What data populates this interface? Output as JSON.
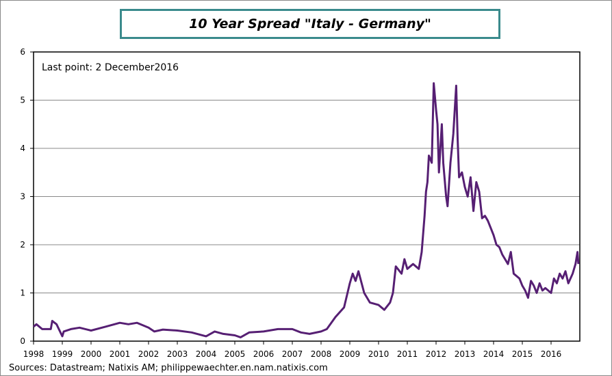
{
  "chart_data": {
    "type": "line",
    "title": "10 Year Spread \"Italy - Germany\"",
    "annotation": "Last point: 2 December2016",
    "source": "Sources: Datastream;  Natixis AM; philippewaechter.en.nam.natixis.com",
    "xlabel": "",
    "ylabel": "",
    "xlim": [
      1998,
      2017
    ],
    "ylim": [
      0,
      6
    ],
    "grid": true,
    "line_color": "#561f73",
    "y_ticks": [
      "0",
      "1",
      "2",
      "3",
      "4",
      "5",
      "6"
    ],
    "x_ticks": [
      "1998",
      "1999",
      "2000",
      "2001",
      "2002",
      "2003",
      "2004",
      "2005",
      "2006",
      "2007",
      "2008",
      "2009",
      "2010",
      "2011",
      "2012",
      "2013",
      "2014",
      "2015",
      "2016"
    ],
    "series": [
      {
        "x": [
          1998.0,
          1998.1,
          1998.3,
          1998.6,
          1998.65,
          1998.8,
          1999.0,
          1999.05,
          1999.3,
          1999.6,
          2000.0,
          2000.5,
          2001.0,
          2001.3,
          2001.6,
          2002.0,
          2002.2,
          2002.5,
          2003.0,
          2003.5,
          2004.0,
          2004.3,
          2004.6,
          2005.0,
          2005.2,
          2005.5,
          2006.0,
          2006.5,
          2007.0,
          2007.3,
          2007.6,
          2008.0,
          2008.2,
          2008.5,
          2008.8,
          2009.0,
          2009.1,
          2009.2,
          2009.3,
          2009.5,
          2009.7,
          2010.0,
          2010.2,
          2010.4,
          2010.5,
          2010.6,
          2010.8,
          2010.9,
          2011.0,
          2011.2,
          2011.4,
          2011.5,
          2011.6,
          2011.65,
          2011.7,
          2011.75,
          2011.85,
          2011.92,
          2012.0,
          2012.05,
          2012.1,
          2012.2,
          2012.25,
          2012.35,
          2012.4,
          2012.5,
          2012.6,
          2012.7,
          2012.75,
          2012.8,
          2012.9,
          2013.0,
          2013.1,
          2013.2,
          2013.3,
          2013.4,
          2013.5,
          2013.6,
          2013.7,
          2013.8,
          2013.9,
          2014.0,
          2014.1,
          2014.2,
          2014.3,
          2014.4,
          2014.5,
          2014.6,
          2014.7,
          2014.8,
          2014.9,
          2015.0,
          2015.1,
          2015.2,
          2015.3,
          2015.4,
          2015.5,
          2015.6,
          2015.7,
          2015.8,
          2016.0,
          2016.1,
          2016.2,
          2016.3,
          2016.4,
          2016.5,
          2016.6,
          2016.75,
          2016.85,
          2016.92,
          2016.95
        ],
        "y": [
          0.3,
          0.35,
          0.25,
          0.25,
          0.42,
          0.35,
          0.1,
          0.2,
          0.25,
          0.28,
          0.22,
          0.3,
          0.38,
          0.35,
          0.38,
          0.28,
          0.2,
          0.24,
          0.22,
          0.18,
          0.1,
          0.2,
          0.15,
          0.12,
          0.08,
          0.18,
          0.2,
          0.25,
          0.25,
          0.18,
          0.15,
          0.2,
          0.25,
          0.5,
          0.7,
          1.2,
          1.4,
          1.25,
          1.45,
          1.0,
          0.8,
          0.75,
          0.65,
          0.8,
          1.0,
          1.55,
          1.4,
          1.7,
          1.5,
          1.6,
          1.5,
          1.85,
          2.6,
          3.1,
          3.3,
          3.85,
          3.7,
          5.35,
          4.8,
          4.5,
          3.5,
          4.5,
          3.7,
          3.0,
          2.8,
          3.7,
          4.3,
          5.3,
          4.2,
          3.4,
          3.5,
          3.2,
          3.0,
          3.4,
          2.7,
          3.3,
          3.1,
          2.55,
          2.6,
          2.5,
          2.35,
          2.2,
          2.0,
          1.95,
          1.8,
          1.7,
          1.6,
          1.85,
          1.4,
          1.35,
          1.3,
          1.15,
          1.05,
          0.9,
          1.25,
          1.15,
          1.0,
          1.2,
          1.05,
          1.1,
          1.0,
          1.3,
          1.2,
          1.4,
          1.3,
          1.45,
          1.2,
          1.4,
          1.6,
          1.85,
          1.6
        ]
      }
    ]
  }
}
